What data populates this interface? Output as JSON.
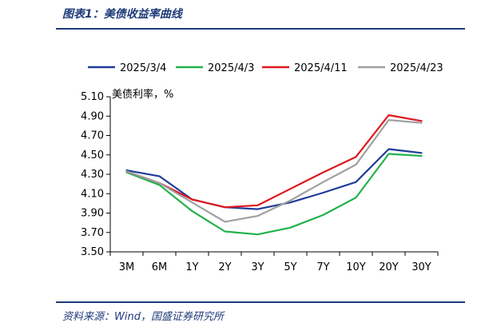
{
  "header": {
    "figure_title": "图表1：美债收益率曲线"
  },
  "footer": {
    "source": "资料来源：Wind，国盛证券研究所"
  },
  "colors": {
    "rule": "#1f3b7a",
    "axis": "#000000"
  },
  "chart_data": {
    "type": "line",
    "title": "",
    "ylabel": "美债利率，%",
    "xlabel": "",
    "categories": [
      "3M",
      "6M",
      "1Y",
      "2Y",
      "3Y",
      "5Y",
      "7Y",
      "10Y",
      "20Y",
      "30Y"
    ],
    "ylim": [
      3.5,
      5.1
    ],
    "yticks": [
      "3.50",
      "3.70",
      "3.90",
      "4.10",
      "4.30",
      "4.50",
      "4.70",
      "4.90",
      "5.10"
    ],
    "legend_position": "top",
    "grid": false,
    "series": [
      {
        "name": "2025/3/4",
        "color": "#1f3d99",
        "values": [
          4.34,
          4.28,
          4.04,
          3.96,
          3.94,
          4.01,
          4.11,
          4.22,
          4.56,
          4.52
        ]
      },
      {
        "name": "2025/4/3",
        "color": "#22b14c",
        "values": [
          4.32,
          4.19,
          3.92,
          3.71,
          3.68,
          3.75,
          3.88,
          4.06,
          4.51,
          4.49
        ]
      },
      {
        "name": "2025/4/11",
        "color": "#e0161d",
        "values": [
          4.33,
          4.21,
          4.04,
          3.96,
          3.98,
          4.15,
          4.32,
          4.48,
          4.91,
          4.85
        ]
      },
      {
        "name": "2025/4/23",
        "color": "#a0a0a0",
        "values": [
          4.33,
          4.21,
          4.01,
          3.81,
          3.87,
          4.03,
          4.22,
          4.4,
          4.86,
          4.83
        ]
      }
    ]
  }
}
